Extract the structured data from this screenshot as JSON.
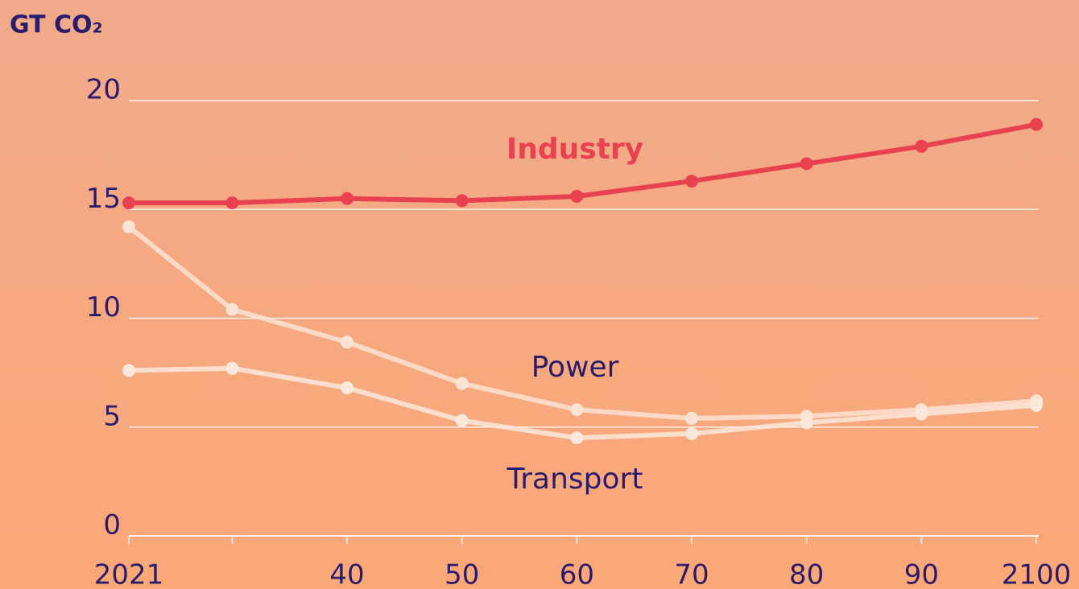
{
  "chart_data": {
    "type": "line",
    "y_label": "GT CO₂",
    "x": [
      2021,
      2030,
      2040,
      2050,
      2060,
      2070,
      2080,
      2090,
      2100
    ],
    "xlim": [
      2021,
      2100
    ],
    "xticks": [
      2021,
      {
        "value": 2030,
        "label": null
      },
      {
        "value": 2040,
        "label": "40"
      },
      {
        "value": 2050,
        "label": "50"
      },
      {
        "value": 2060,
        "label": "60"
      },
      {
        "value": 2070,
        "label": "70"
      },
      {
        "value": 2080,
        "label": "80"
      },
      {
        "value": 2090,
        "label": "90"
      },
      2100
    ],
    "ylim": [
      0,
      20
    ],
    "yticks": [
      0,
      5,
      10,
      15,
      20
    ],
    "grid": true,
    "series": [
      {
        "name": "Industry",
        "color": "#e8414f",
        "values": [
          15.3,
          15.3,
          15.5,
          15.4,
          15.6,
          16.3,
          17.1,
          17.9,
          18.9
        ]
      },
      {
        "name": "Power",
        "color": "#fde3d3",
        "values": [
          14.2,
          10.4,
          8.9,
          7.0,
          5.8,
          5.4,
          5.5,
          5.8,
          6.2
        ]
      },
      {
        "name": "Transport",
        "color": "#fde8dc",
        "values": [
          7.6,
          7.7,
          6.8,
          5.3,
          4.5,
          4.7,
          5.2,
          5.6,
          6.0
        ]
      }
    ]
  }
}
